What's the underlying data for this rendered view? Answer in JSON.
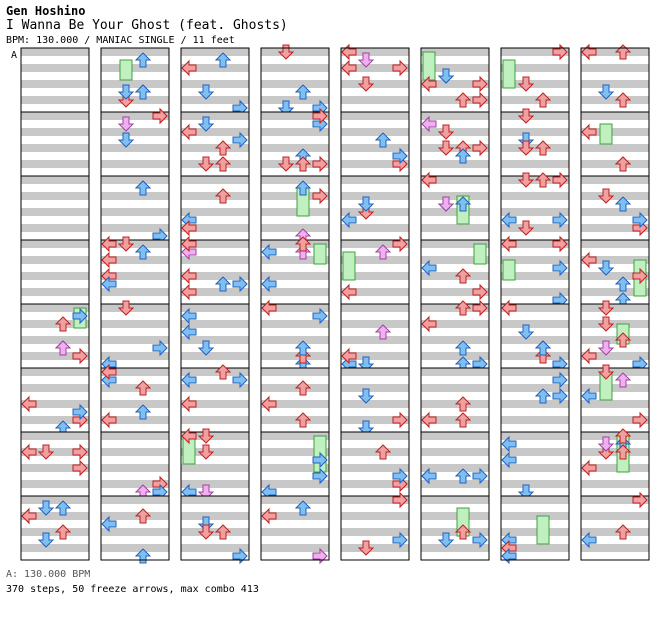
{
  "header": {
    "artist": "Gen Hoshino",
    "title": "I Wanna Be Your Ghost (feat. Ghosts)",
    "info": "BPM: 130.000 / MANIAC SINGLE / 11 feet"
  },
  "marker": {
    "label": "A"
  },
  "footer": {
    "bpm": "A: 130.000 BPM",
    "summary": "370 steps, 50 freeze arrows, max combo 413"
  },
  "colors": {
    "red": "#f0a0a0",
    "red_stroke": "#c02020",
    "blue": "#80c0f0",
    "blue_stroke": "#2060c0",
    "pink": "#f0b0f0",
    "pink_stroke": "#a040a0",
    "freeze": "#c0f0c0",
    "freeze_stroke": "#40a040",
    "stripe": "#c8c8c8"
  },
  "chart": {
    "columns": 8,
    "measures_per_column": 8,
    "empty_measures": [
      0,
      1,
      2,
      3
    ]
  }
}
